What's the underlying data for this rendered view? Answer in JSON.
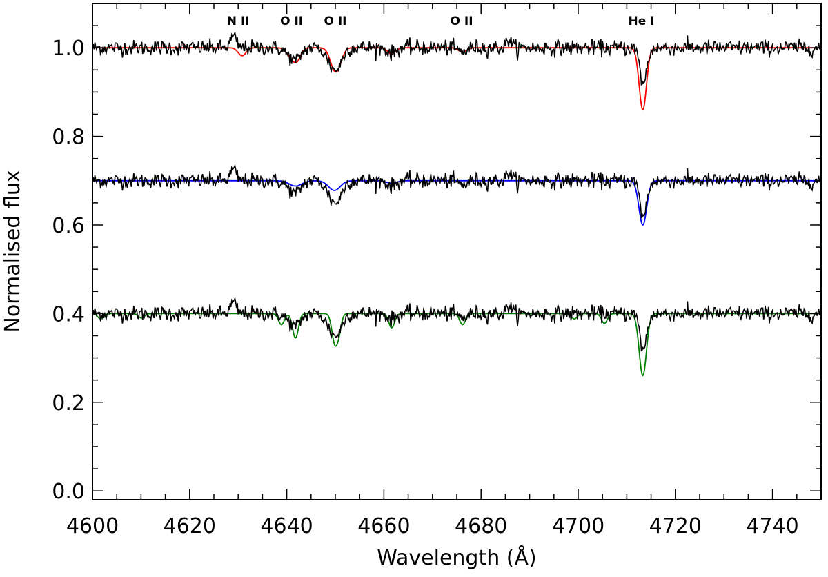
{
  "chart_data": {
    "type": "line",
    "title": "",
    "xlabel": "Wavelength (Å)",
    "ylabel": "Normalised flux",
    "xlim": [
      4600,
      4750
    ],
    "ylim": [
      -0.02,
      1.1
    ],
    "xticks": [
      4600,
      4620,
      4640,
      4660,
      4680,
      4700,
      4720,
      4740
    ],
    "xtick_labels": [
      "4600",
      "4620",
      "4640",
      "4660",
      "4680",
      "4700",
      "4720",
      "4740"
    ],
    "yticks": [
      0.0,
      0.2,
      0.4,
      0.6,
      0.8,
      1.0
    ],
    "ytick_labels": [
      "0.0",
      "0.2",
      "0.4",
      "0.6",
      "0.8",
      "1.0"
    ],
    "grid": false,
    "legend": "none",
    "line_labels": [
      {
        "text": "N II",
        "x": 4630
      },
      {
        "text": "O II",
        "x": 4641
      },
      {
        "text": "O II",
        "x": 4650
      },
      {
        "text": "O II",
        "x": 4676
      },
      {
        "text": "He I",
        "x": 4713
      }
    ],
    "observed_features": [
      {
        "center": 4629.0,
        "depth": -0.025,
        "width": 0.6
      },
      {
        "center": 4640.6,
        "depth": 0.012,
        "width": 1.2
      },
      {
        "center": 4642.0,
        "depth": 0.022,
        "width": 1.0
      },
      {
        "center": 4649.5,
        "depth": 0.04,
        "width": 1.2
      },
      {
        "center": 4650.8,
        "depth": 0.02,
        "width": 0.9
      },
      {
        "center": 4661.6,
        "depth": 0.012,
        "width": 0.9
      },
      {
        "center": 4676.2,
        "depth": 0.01,
        "width": 0.9
      },
      {
        "center": 4685.8,
        "depth": -0.02,
        "width": 0.5
      },
      {
        "center": 4712.4,
        "depth": -0.015,
        "width": 0.6
      },
      {
        "center": 4713.3,
        "depth": 0.085,
        "width": 0.8
      }
    ],
    "series": [
      {
        "name": "",
        "color": "#ff0000",
        "offset": 1.0,
        "role": "model",
        "lines": [
          {
            "center": 4630.8,
            "depth": 0.018,
            "width": 0.8
          },
          {
            "center": 4640.6,
            "depth": 0.015,
            "width": 0.8
          },
          {
            "center": 4642.0,
            "depth": 0.03,
            "width": 0.8
          },
          {
            "center": 4649.8,
            "depth": 0.045,
            "width": 0.9
          },
          {
            "center": 4650.9,
            "depth": 0.02,
            "width": 0.8
          },
          {
            "center": 4661.6,
            "depth": 0.014,
            "width": 0.8
          },
          {
            "center": 4676.2,
            "depth": 0.01,
            "width": 0.8
          },
          {
            "center": 4713.3,
            "depth": 0.14,
            "width": 0.75
          }
        ]
      },
      {
        "name": "",
        "color": "#000000",
        "offset": 1.0,
        "role": "observed"
      },
      {
        "name": "",
        "color": "#0000ff",
        "offset": 0.7,
        "role": "model",
        "lines": [
          {
            "center": 4641.8,
            "depth": 0.012,
            "width": 1.3
          },
          {
            "center": 4649.8,
            "depth": 0.022,
            "width": 1.2
          },
          {
            "center": 4661.6,
            "depth": 0.006,
            "width": 1.0
          },
          {
            "center": 4713.3,
            "depth": 0.1,
            "width": 0.8
          }
        ]
      },
      {
        "name": "",
        "color": "#000000",
        "offset": 0.7,
        "role": "observed"
      },
      {
        "name": "",
        "color": "#008000",
        "offset": 0.4,
        "role": "model",
        "lines": [
          {
            "center": 4601.7,
            "depth": 0.012,
            "width": 0.6
          },
          {
            "center": 4610.1,
            "depth": 0.01,
            "width": 0.6
          },
          {
            "center": 4638.9,
            "depth": 0.025,
            "width": 0.6
          },
          {
            "center": 4641.8,
            "depth": 0.055,
            "width": 0.6
          },
          {
            "center": 4649.9,
            "depth": 0.066,
            "width": 0.6
          },
          {
            "center": 4650.8,
            "depth": 0.03,
            "width": 0.5
          },
          {
            "center": 4661.6,
            "depth": 0.032,
            "width": 0.6
          },
          {
            "center": 4676.2,
            "depth": 0.025,
            "width": 0.6
          },
          {
            "center": 4699.2,
            "depth": 0.012,
            "width": 0.6
          },
          {
            "center": 4705.4,
            "depth": 0.022,
            "width": 0.6
          },
          {
            "center": 4713.3,
            "depth": 0.14,
            "width": 0.75
          }
        ]
      },
      {
        "name": "",
        "color": "#000000",
        "offset": 0.4,
        "role": "observed"
      }
    ]
  }
}
